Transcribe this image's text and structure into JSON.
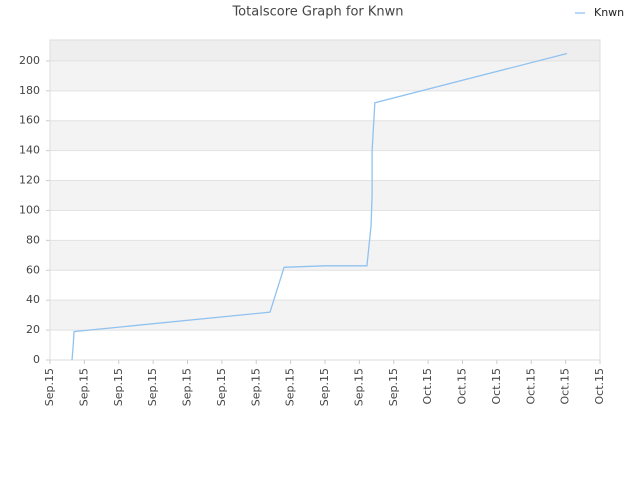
{
  "chart_data": {
    "type": "line",
    "title": "Totalscore Graph for Knwn",
    "x": [
      0.64,
      0.67,
      0.7,
      6.4,
      6.81,
      8.0,
      9.22,
      9.34,
      9.37,
      9.37,
      9.45,
      15.04
    ],
    "series": [
      {
        "name": "Knwn",
        "color": "#90c2f0",
        "values": [
          0,
          8,
          19,
          32,
          62,
          63,
          63,
          90,
          110,
          140,
          172,
          205
        ]
      }
    ],
    "xlim": [
      0,
      16
    ],
    "xticks": [
      {
        "value": 0,
        "label": "Sep.15"
      },
      {
        "value": 1,
        "label": "Sep.15"
      },
      {
        "value": 2,
        "label": "Sep.15"
      },
      {
        "value": 3,
        "label": "Sep.15"
      },
      {
        "value": 4,
        "label": "Sep.15"
      },
      {
        "value": 5,
        "label": "Sep.15"
      },
      {
        "value": 6,
        "label": "Sep.15"
      },
      {
        "value": 7,
        "label": "Sep.15"
      },
      {
        "value": 8,
        "label": "Sep.15"
      },
      {
        "value": 9,
        "label": "Sep.15"
      },
      {
        "value": 10,
        "label": "Sep.15"
      },
      {
        "value": 11,
        "label": "Oct.15"
      },
      {
        "value": 12,
        "label": "Oct.15"
      },
      {
        "value": 13,
        "label": "Oct.15"
      },
      {
        "value": 14,
        "label": "Oct.15"
      },
      {
        "value": 15,
        "label": "Oct.15"
      },
      {
        "value": 16,
        "label": "Oct.15"
      }
    ],
    "ylim": [
      0,
      214
    ],
    "yticks": [
      0,
      20,
      40,
      60,
      80,
      100,
      120,
      140,
      160,
      180,
      200
    ],
    "grid": true,
    "legend": "top-right"
  }
}
